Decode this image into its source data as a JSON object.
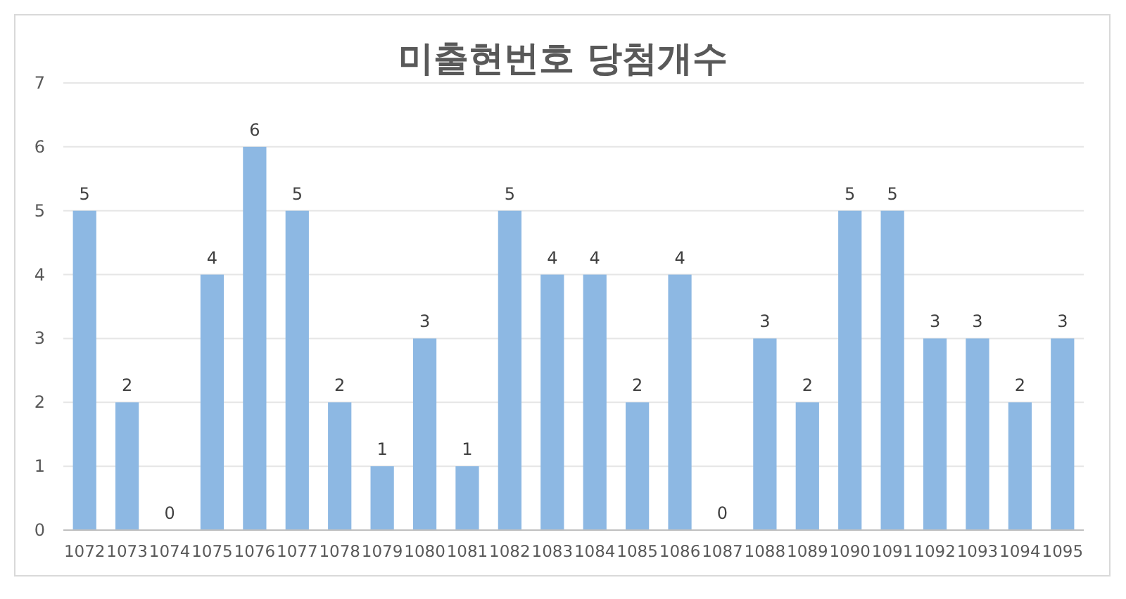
{
  "chart_data": {
    "type": "bar",
    "title": "미출현번호 당첨개수",
    "categories": [
      "1072",
      "1073",
      "1074",
      "1075",
      "1076",
      "1077",
      "1078",
      "1079",
      "1080",
      "1081",
      "1082",
      "1083",
      "1084",
      "1085",
      "1086",
      "1087",
      "1088",
      "1089",
      "1090",
      "1091",
      "1092",
      "1093",
      "1094",
      "1095"
    ],
    "values": [
      5,
      2,
      0,
      4,
      6,
      5,
      2,
      1,
      3,
      1,
      5,
      4,
      4,
      2,
      4,
      0,
      3,
      2,
      5,
      5,
      3,
      3,
      2,
      3
    ],
    "color": "#8db8e3",
    "ylim": [
      0,
      7
    ],
    "yticks": [
      0,
      1,
      2,
      3,
      4,
      5,
      6,
      7
    ],
    "grid": "y",
    "data_labels": true
  }
}
